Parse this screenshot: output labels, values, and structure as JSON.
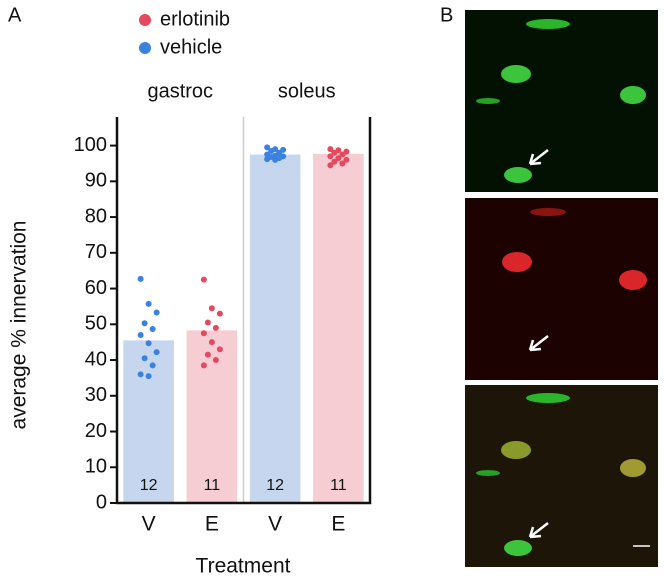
{
  "chart_data": {
    "type": "bar",
    "panel_labels": [
      "A",
      "B"
    ],
    "ylabel": "average % innervation",
    "xlabel": "Treatment",
    "groups": [
      "gastroc",
      "soleus"
    ],
    "categories": [
      "V",
      "E",
      "V",
      "E"
    ],
    "n": [
      12,
      11,
      12,
      11
    ],
    "series": [
      {
        "name": "erlotinib",
        "color": "#e6485f",
        "bar_color": "#f5cdd3",
        "values": [
          null,
          48.3,
          null,
          97.7
        ]
      },
      {
        "name": "vehicle",
        "color": "#3b82e0",
        "bar_color": "#c6d6ef",
        "values": [
          45.5,
          null,
          97.5,
          null
        ]
      }
    ],
    "points": [
      [
        62.7,
        55.7,
        53.3,
        50.3,
        48.7,
        47.0,
        44.7,
        42.2,
        40.5,
        38.5,
        36.0,
        35.5
      ],
      [
        62.5,
        54.5,
        53.0,
        50.5,
        49.0,
        47.5,
        45.0,
        43.0,
        41.5,
        40.0,
        38.5
      ],
      [
        99.5,
        99.0,
        98.8,
        98.5,
        98.0,
        97.5,
        97.2,
        97.0,
        96.8,
        96.5,
        96.2,
        96.0
      ],
      [
        99.0,
        98.7,
        98.3,
        98.0,
        97.5,
        97.0,
        96.5,
        96.0,
        95.5,
        95.0,
        94.5
      ]
    ],
    "ylim": [
      0,
      108
    ],
    "yticks": [
      0,
      10,
      20,
      30,
      40,
      50,
      60,
      70,
      80,
      90,
      100
    ]
  }
}
